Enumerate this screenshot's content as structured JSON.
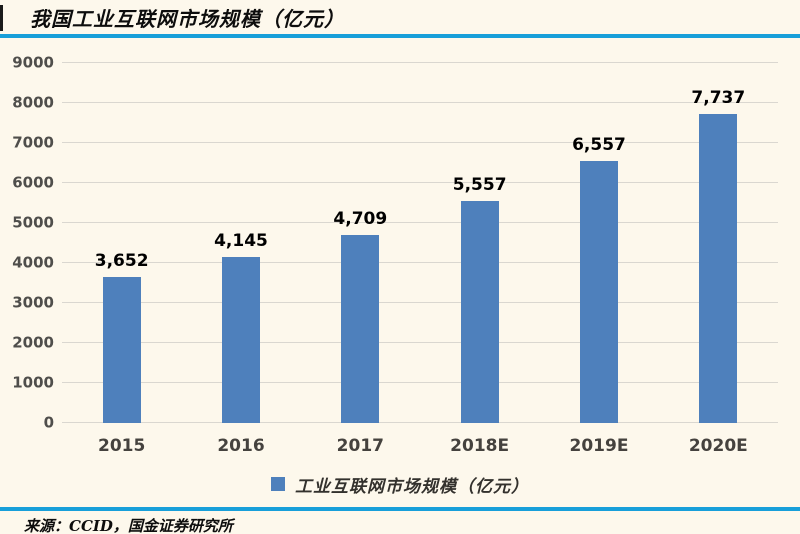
{
  "page": {
    "title": "我国工业互联网市场规模（亿元）",
    "source_note": "来源：CCID，国金证券研究所",
    "background_color": "#FDF8EC",
    "accent_rule_color": "#189FD9"
  },
  "chart_data": {
    "type": "bar",
    "title": "我国工业互联网市场规模（亿元）",
    "categories": [
      "2015",
      "2016",
      "2017",
      "2018E",
      "2019E",
      "2020E"
    ],
    "values": [
      3652,
      4145,
      4709,
      5557,
      6557,
      7737
    ],
    "value_labels": [
      "3,652",
      "4,145",
      "4,709",
      "5,557",
      "6,557",
      "7,737"
    ],
    "legend": [
      "工业互联网市场规模（亿元）"
    ],
    "legend_position": "bottom",
    "xlabel": "",
    "ylabel": "",
    "ylim": [
      0,
      9000
    ],
    "yticks": [
      0,
      1000,
      2000,
      3000,
      4000,
      5000,
      6000,
      7000,
      8000,
      9000
    ],
    "grid": true,
    "bar_color": "#4E80BC",
    "gridline_color": "#DAD7D0",
    "tick_label_color": "#4F4E4B",
    "value_label_color": "#000000"
  }
}
